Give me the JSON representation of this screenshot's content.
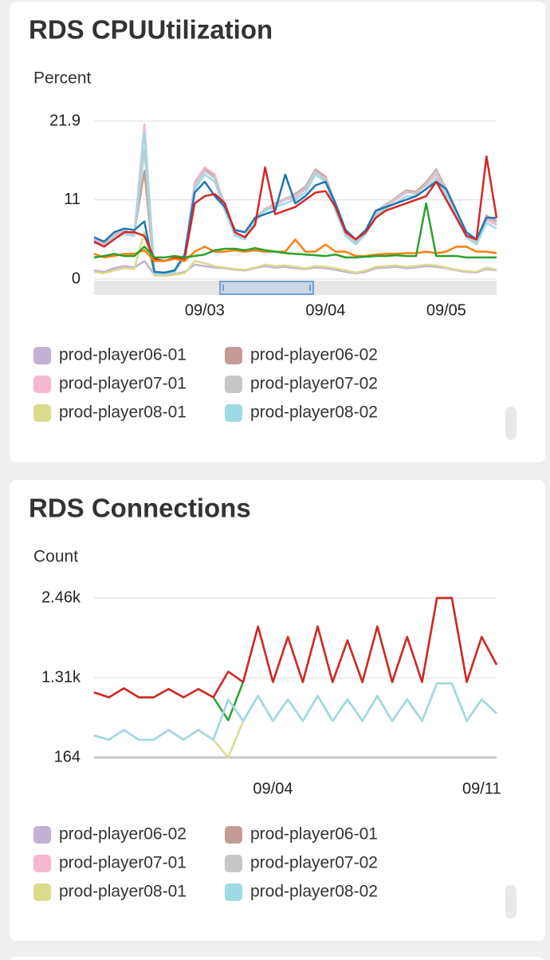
{
  "chart_data": [
    {
      "type": "line",
      "title": "RDS CPUUtilization",
      "y_label": "Percent",
      "categories": [
        null,
        null,
        null,
        null,
        null,
        null,
        null,
        null,
        null,
        null,
        null,
        "09/03",
        null,
        null,
        null,
        null,
        null,
        null,
        null,
        null,
        null,
        null,
        null,
        "09/04",
        null,
        null,
        null,
        null,
        null,
        null,
        null,
        null,
        null,
        null,
        null,
        "09/05",
        null,
        null,
        null,
        null,
        null
      ],
      "ylim": [
        0,
        21.9
      ],
      "yticks": [
        0,
        11,
        21.9
      ],
      "grid": true,
      "series": [
        {
          "name": "prod-player06-01",
          "color": "#c5b0d5",
          "values": [
            1.2,
            1.0,
            1.5,
            1.8,
            1.6,
            2.5,
            0.6,
            0.5,
            0.7,
            1.0,
            2.0,
            1.8,
            1.6,
            1.5,
            1.3,
            1.2,
            1.5,
            1.8,
            1.6,
            1.7,
            1.5,
            1.4,
            1.6,
            1.5,
            1.3,
            1.0,
            0.8,
            1.0,
            1.5,
            1.6,
            1.7,
            1.5,
            1.6,
            1.8,
            1.7,
            1.5,
            1.2,
            1.0,
            0.9,
            1.4,
            1.2
          ]
        },
        {
          "name": "prod-player06-02",
          "color": "#c49c94",
          "values": [
            5.6,
            5.0,
            6.3,
            6.6,
            6.4,
            15.0,
            0.9,
            0.8,
            1.1,
            3.3,
            13.2,
            15.3,
            14.2,
            10.3,
            6.4,
            5.7,
            8.5,
            9.7,
            10.5,
            11.1,
            11.8,
            12.8,
            15.2,
            14.2,
            10.3,
            6.6,
            5.1,
            6.7,
            9.2,
            10.3,
            11.3,
            12.3,
            12.1,
            13.4,
            15.2,
            12.4,
            9.3,
            6.3,
            5.3,
            8.8,
            8.0
          ]
        },
        {
          "name": "prod-player07-01",
          "color": "#f7b6d2",
          "values": [
            5.5,
            4.8,
            6.0,
            6.5,
            6.3,
            21.5,
            0.9,
            0.8,
            1.1,
            3.2,
            13.5,
            15.5,
            14.5,
            10.0,
            6.3,
            5.8,
            8.3,
            9.8,
            10.3,
            11.0,
            11.3,
            12.5,
            14.8,
            14.0,
            10.0,
            6.3,
            5.0,
            6.5,
            9.0,
            10.2,
            11.0,
            12.0,
            12.0,
            13.0,
            14.5,
            12.0,
            9.0,
            6.0,
            5.0,
            8.2,
            7.5
          ]
        },
        {
          "name": "prod-player07-02",
          "color": "#c7c7c7",
          "values": [
            5.3,
            4.6,
            6.2,
            6.8,
            6.1,
            18.0,
            0.8,
            0.7,
            1.0,
            3.1,
            13.0,
            15.0,
            14.0,
            10.2,
            6.2,
            5.6,
            8.6,
            9.6,
            10.4,
            11.2,
            11.6,
            12.6,
            15.0,
            13.8,
            10.2,
            6.5,
            5.2,
            6.8,
            9.4,
            10.4,
            11.2,
            12.2,
            11.8,
            13.2,
            15.0,
            12.2,
            9.2,
            6.2,
            5.2,
            8.5,
            7.8
          ]
        },
        {
          "name": "prod-player08-01",
          "color": "#dbdb8d",
          "values": [
            1.0,
            0.8,
            1.2,
            1.5,
            1.4,
            6.5,
            0.5,
            0.4,
            0.6,
            0.8,
            2.5,
            2.2,
            1.8,
            1.6,
            1.4,
            1.3,
            1.6,
            2.0,
            1.8,
            1.9,
            1.7,
            1.5,
            1.8,
            1.7,
            1.5,
            1.2,
            0.9,
            1.2,
            1.7,
            1.8,
            1.9,
            1.7,
            1.8,
            2.0,
            1.9,
            1.6,
            1.3,
            1.1,
            1.0,
            1.6,
            1.3
          ]
        },
        {
          "name": "prod-player08-02",
          "color": "#9edae5",
          "values": [
            5.0,
            4.5,
            5.8,
            6.2,
            6.0,
            20.5,
            0.8,
            0.7,
            1.0,
            3.0,
            12.5,
            14.5,
            13.5,
            9.5,
            6.0,
            5.5,
            8.0,
            9.5,
            10.0,
            10.5,
            11.0,
            12.0,
            14.5,
            13.5,
            9.5,
            6.0,
            4.8,
            6.3,
            8.8,
            9.8,
            10.5,
            11.5,
            11.5,
            12.5,
            14.0,
            11.5,
            8.5,
            5.8,
            4.8,
            7.8,
            7.0
          ]
        },
        {
          "color": "#1f77b4",
          "values": [
            5.8,
            5.2,
            6.5,
            7.0,
            6.8,
            8.0,
            1.0,
            0.9,
            1.2,
            3.4,
            12.0,
            13.5,
            11.5,
            10.0,
            6.8,
            6.5,
            8.5,
            9.0,
            9.5,
            14.5,
            10.5,
            11.5,
            13.0,
            13.5,
            10.5,
            6.8,
            5.5,
            6.8,
            9.5,
            10.0,
            10.5,
            11.0,
            11.5,
            12.5,
            13.5,
            12.5,
            9.5,
            6.5,
            5.5,
            8.5,
            8.5
          ]
        },
        {
          "color": "#d62728",
          "values": [
            5.2,
            4.5,
            5.5,
            6.5,
            6.5,
            6.0,
            2.8,
            2.5,
            3.0,
            2.8,
            10.5,
            11.5,
            11.8,
            10.5,
            6.5,
            5.8,
            7.5,
            15.5,
            9.0,
            9.5,
            10.0,
            11.0,
            12.0,
            12.2,
            10.0,
            6.5,
            5.5,
            6.5,
            8.5,
            9.5,
            10.0,
            10.5,
            11.0,
            11.5,
            13.5,
            11.0,
            8.5,
            6.0,
            5.5,
            17.0,
            8.5
          ]
        },
        {
          "color": "#ff7f0e",
          "values": [
            3.5,
            3.0,
            3.2,
            3.5,
            3.5,
            4.0,
            2.5,
            2.5,
            2.8,
            2.5,
            3.8,
            4.5,
            3.8,
            3.8,
            4.0,
            3.8,
            4.0,
            3.8,
            3.8,
            3.8,
            5.5,
            3.8,
            3.8,
            4.8,
            3.8,
            3.8,
            3.2,
            3.2,
            3.4,
            3.5,
            3.5,
            3.6,
            3.6,
            3.8,
            3.6,
            3.8,
            4.5,
            4.5,
            3.8,
            3.8,
            3.6
          ]
        },
        {
          "color": "#2ca02c",
          "values": [
            3.0,
            3.2,
            3.5,
            3.2,
            3.2,
            4.5,
            3.0,
            3.0,
            3.2,
            3.0,
            3.2,
            3.4,
            4.0,
            4.2,
            4.2,
            4.0,
            4.3,
            4.0,
            3.8,
            3.6,
            3.5,
            3.4,
            3.3,
            3.2,
            3.4,
            3.0,
            3.0,
            3.1,
            3.2,
            3.2,
            3.3,
            3.2,
            3.2,
            10.5,
            3.2,
            3.2,
            3.2,
            3.0,
            3.0,
            3.0,
            3.0
          ]
        }
      ]
    },
    {
      "type": "line",
      "title": "RDS Connections",
      "y_label": "Count",
      "categories": [
        null,
        null,
        null,
        null,
        null,
        null,
        null,
        null,
        null,
        null,
        null,
        null,
        "09/04",
        null,
        null,
        null,
        null,
        null,
        null,
        null,
        null,
        null,
        null,
        null,
        null,
        null,
        "09/11",
        null
      ],
      "ylim": [
        164,
        2460
      ],
      "yticks": [
        164,
        {
          "value": 1310,
          "label": "1.31k"
        },
        {
          "value": 2460,
          "label": "2.46k"
        }
      ],
      "grid": true,
      "series": [
        {
          "name": "prod-player06-02",
          "color": "#c5b0d5",
          "values": [
            480,
            420,
            560,
            420,
            420,
            560,
            420,
            560,
            420,
            1000,
            690,
            1050,
            690,
            1000,
            690,
            1050,
            690,
            1000,
            690,
            1050,
            690,
            1000,
            690,
            1230,
            1230,
            690,
            1000,
            800
          ]
        },
        {
          "name": "prod-player06-01",
          "color": "#c49c94",
          "values": [
            1100,
            1030,
            1160,
            1030,
            1030,
            1150,
            1030,
            1150,
            1030,
            1400,
            1250,
            2050,
            1250,
            1900,
            1250,
            2050,
            1250,
            1850,
            1250,
            2050,
            1250,
            1900,
            1250,
            2460,
            2460,
            1250,
            1900,
            1500
          ]
        },
        {
          "name": "prod-player07-01",
          "color": "#f7b6d2",
          "values": [
            480,
            420,
            560,
            420,
            420,
            560,
            420,
            560,
            420,
            1000,
            690,
            1050,
            690,
            1000,
            690,
            1050,
            690,
            1000,
            690,
            1050,
            690,
            1000,
            690,
            1230,
            1230,
            690,
            1000,
            800
          ]
        },
        {
          "name": "prod-player07-02",
          "color": "#c7c7c7",
          "values": [
            480,
            420,
            560,
            420,
            420,
            560,
            420,
            560,
            420,
            1000,
            690,
            1050,
            690,
            1000,
            690,
            1050,
            690,
            1000,
            690,
            1050,
            690,
            1000,
            690,
            1230,
            1230,
            690,
            1000,
            800
          ]
        },
        {
          "name": "prod-player08-01",
          "color": "#dbdb8d",
          "values": [
            480,
            420,
            560,
            420,
            420,
            560,
            420,
            560,
            420,
            164,
            690,
            1050,
            690,
            1000,
            690,
            1050,
            690,
            1000,
            690,
            1050,
            690,
            1000,
            690,
            1230,
            1230,
            690,
            1000,
            800
          ]
        },
        {
          "color": "#2ca02c",
          "values": [
            1100,
            1030,
            1160,
            1030,
            1030,
            1150,
            1030,
            1150,
            1030,
            700,
            1250,
            2050,
            1250,
            1900,
            1250,
            2050,
            1250,
            1850,
            1250,
            2050,
            1250,
            1900,
            1250,
            2460,
            2460,
            1250,
            1900,
            1500
          ]
        },
        {
          "color": "#d62728",
          "values": [
            1100,
            1030,
            1160,
            1030,
            1030,
            1150,
            1030,
            1150,
            1030,
            1400,
            1250,
            2050,
            1250,
            1900,
            1250,
            2050,
            1250,
            1850,
            1250,
            2050,
            1250,
            1900,
            1250,
            2460,
            2460,
            1250,
            1900,
            1500
          ]
        },
        {
          "name": "prod-player08-02",
          "color": "#9edae5",
          "values": [
            480,
            420,
            560,
            420,
            420,
            560,
            420,
            560,
            420,
            1000,
            690,
            1050,
            690,
            1000,
            690,
            1050,
            690,
            1000,
            690,
            1050,
            690,
            1000,
            690,
            1230,
            1230,
            690,
            1000,
            800
          ]
        }
      ]
    }
  ]
}
